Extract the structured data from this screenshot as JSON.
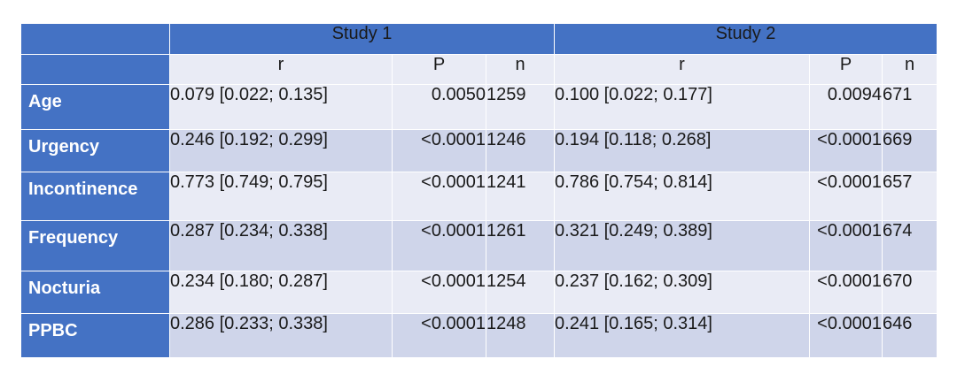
{
  "table": {
    "studies": [
      "Study 1",
      "Study 2"
    ],
    "subheaders": [
      "r",
      "P",
      "n",
      "r",
      "P",
      "n"
    ],
    "rows": [
      {
        "label": "Age",
        "cells": [
          "0.079 [0.022; 0.135]",
          "0.0050",
          "1259",
          "0.100 [0.022; 0.177]",
          "0.0094",
          "671"
        ]
      },
      {
        "label": "Urgency",
        "cells": [
          "0.246 [0.192; 0.299]",
          "<0.0001",
          "1246",
          "0.194 [0.118; 0.268]",
          "<0.0001",
          "669"
        ]
      },
      {
        "label": "Incontinence",
        "cells": [
          "0.773 [0.749; 0.795]",
          "<0.0001",
          "1241",
          "0.786 [0.754; 0.814]",
          "<0.0001",
          "657"
        ]
      },
      {
        "label": "Frequency",
        "cells": [
          "0.287 [0.234; 0.338]",
          "<0.0001",
          "1261",
          "0.321 [0.249; 0.389]",
          "<0.0001",
          "674"
        ]
      },
      {
        "label": "Nocturia",
        "cells": [
          "0.234 [0.180; 0.287]",
          "<0.0001",
          "1254",
          "0.237 [0.162; 0.309]",
          "<0.0001",
          "670"
        ]
      },
      {
        "label": "PPBC",
        "cells": [
          "0.286 [0.233; 0.338]",
          "<0.0001",
          "1248",
          "0.241 [0.165; 0.314]",
          "<0.0001",
          "646"
        ]
      }
    ]
  },
  "colors": {
    "header_blue": "#4472c4",
    "row_light": "#e9ebf5",
    "row_dark": "#cfd5ea"
  }
}
